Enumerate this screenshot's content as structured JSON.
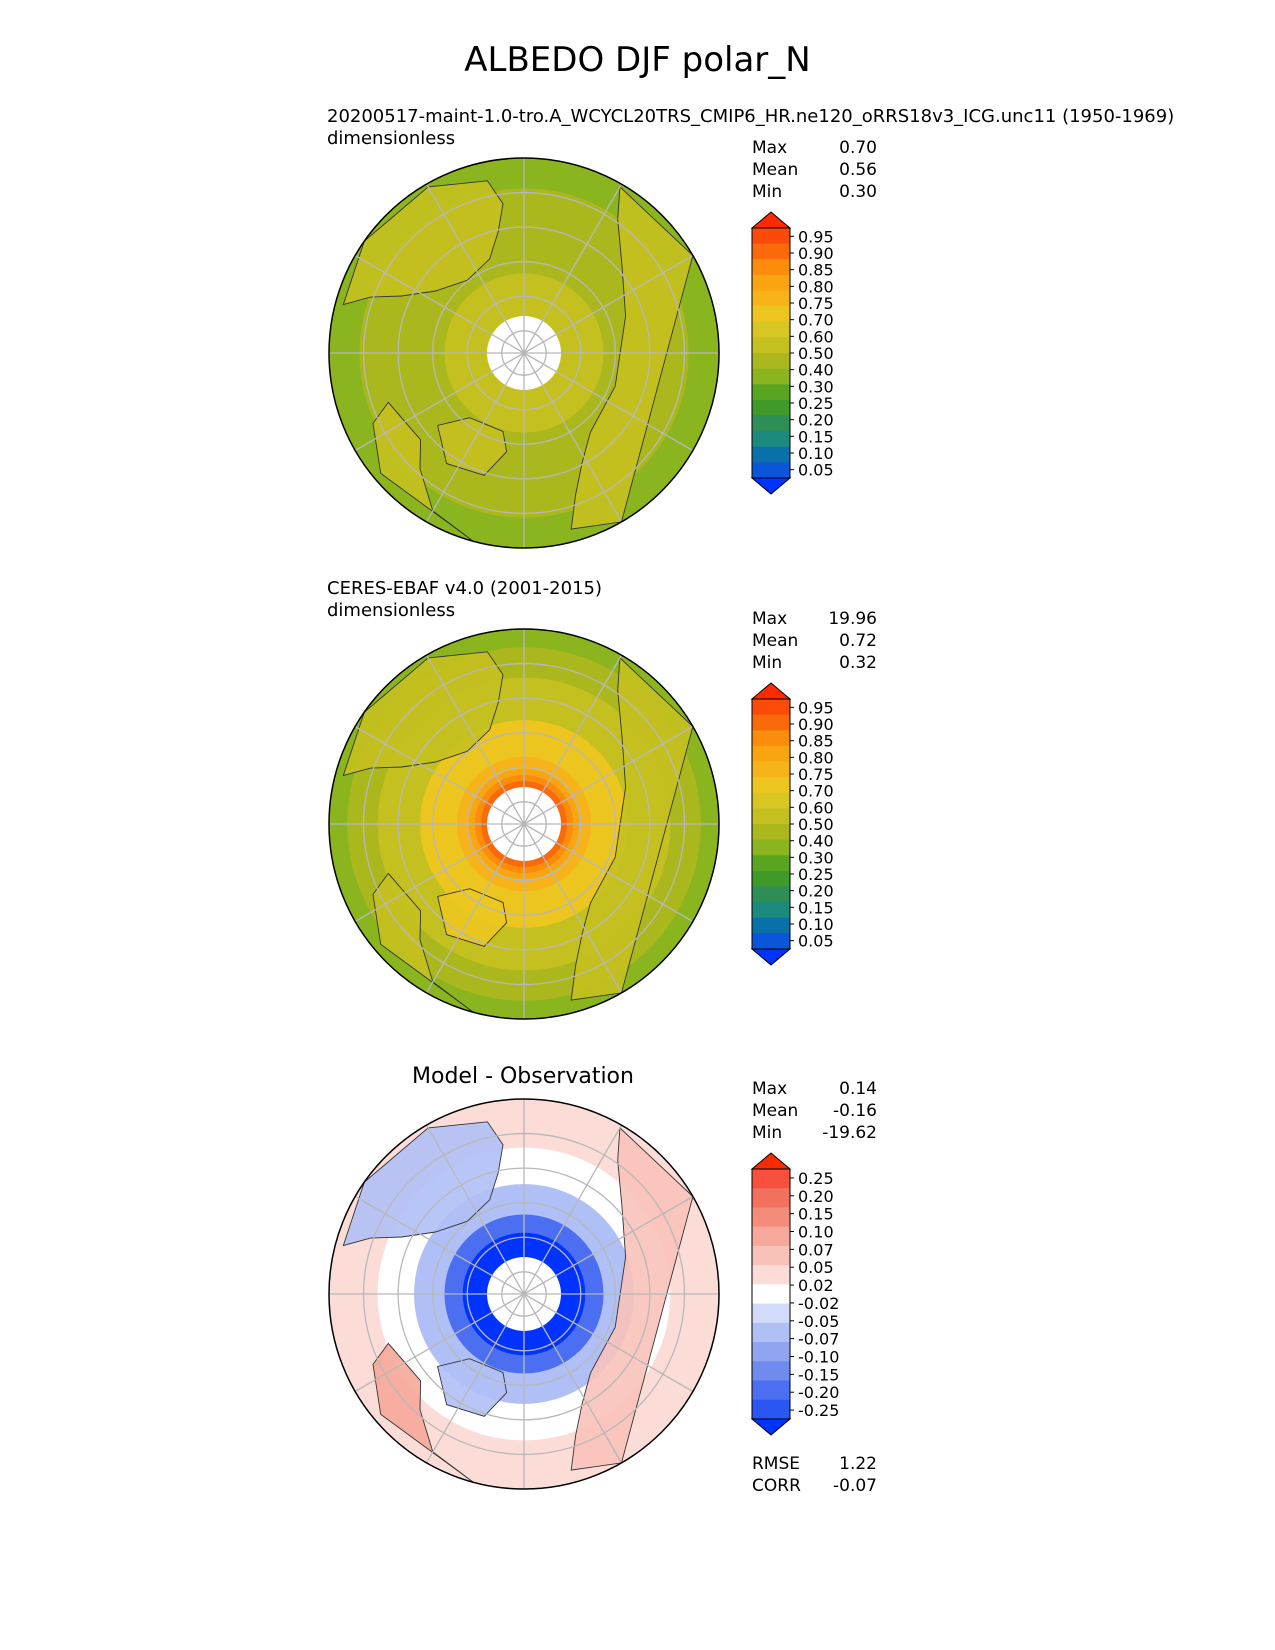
{
  "figure": {
    "title": "ALBEDO DJF polar_N"
  },
  "panels": [
    {
      "id": "model",
      "title_line1": "20200517-maint-1.0-tro.A_WCYCL20TRS_CMIP6_HR.ne120_oRRS18v3_ICG.unc11 (1950-1969)",
      "title_line2": "dimensionless",
      "stats": {
        "max_label": "Max",
        "max_value": "0.70",
        "mean_label": "Mean",
        "mean_value": "0.56",
        "min_label": "Min",
        "min_value": "0.30"
      },
      "colorbar_levels": [
        "0.95",
        "0.90",
        "0.85",
        "0.80",
        "0.75",
        "0.70",
        "0.60",
        "0.50",
        "0.40",
        "0.30",
        "0.25",
        "0.20",
        "0.15",
        "0.10",
        "0.05"
      ]
    },
    {
      "id": "obs",
      "title_line1": "CERES-EBAF v4.0 (2001-2015)",
      "title_line2": "dimensionless",
      "stats": {
        "max_label": "Max",
        "max_value": "19.96",
        "mean_label": "Mean",
        "mean_value": "0.72",
        "min_label": "Min",
        "min_value": "0.32"
      },
      "colorbar_levels": [
        "0.95",
        "0.90",
        "0.85",
        "0.80",
        "0.75",
        "0.70",
        "0.60",
        "0.50",
        "0.40",
        "0.30",
        "0.25",
        "0.20",
        "0.15",
        "0.10",
        "0.05"
      ]
    },
    {
      "id": "diff",
      "title": "Model - Observation",
      "stats": {
        "max_label": "Max",
        "max_value": "0.14",
        "mean_label": "Mean",
        "mean_value": "-0.16",
        "min_label": "Min",
        "min_value": "-19.62"
      },
      "metrics": {
        "rmse_label": "RMSE",
        "rmse_value": "1.22",
        "corr_label": "CORR",
        "corr_value": "-0.07"
      },
      "colorbar_levels": [
        "0.25",
        "0.20",
        "0.15",
        "0.10",
        "0.07",
        "0.05",
        "0.02",
        "-0.02",
        "-0.05",
        "-0.07",
        "-0.10",
        "-0.15",
        "-0.20",
        "-0.25"
      ]
    }
  ],
  "colors": {
    "albedo_scale": [
      "#0033ff",
      "#0a55d8",
      "#0a70a8",
      "#1d8a7e",
      "#2e8e55",
      "#3f9a2a",
      "#5aa520",
      "#8ab51e",
      "#aab81e",
      "#c4c01f",
      "#d8c622",
      "#ecc61f",
      "#f7b41a",
      "#f9a512",
      "#fb8c0c",
      "#fb6a0a",
      "#fa4c08",
      "#fb2a00"
    ],
    "diff_scale": [
      "#0033ff",
      "#2a56f4",
      "#4b6ff0",
      "#6f8bef",
      "#8fa5f2",
      "#b0c0f6",
      "#d2dcfa",
      "#ffffff",
      "#fbdcd7",
      "#f8c2b9",
      "#f6a89a",
      "#f48c7c",
      "#f4705e",
      "#f7503c",
      "#fb2a00"
    ],
    "land_outline": "#333333",
    "graticule": "#b8b8b8",
    "pole_mask": "#ffffff"
  },
  "chart_data": [
    {
      "type": "heatmap",
      "projection": "north-polar-stereographic",
      "title": "20200517-maint-1.0-tro.A_WCYCL20TRS_CMIP6_HR.ne120_oRRS18v3_ICG.unc11 (1950-1969)",
      "units": "dimensionless",
      "variable": "ALBEDO",
      "season": "DJF",
      "stats": {
        "max": 0.7,
        "mean": 0.56,
        "min": 0.3
      },
      "colorbar": {
        "levels": [
          0.05,
          0.1,
          0.15,
          0.2,
          0.25,
          0.3,
          0.4,
          0.5,
          0.6,
          0.7,
          0.75,
          0.8,
          0.85,
          0.9,
          0.95
        ],
        "extend": "both"
      },
      "field_summary": {
        "outer_ring_value": 0.45,
        "mid_ring_value": 0.57,
        "inner_ring_value": 0.66,
        "pole_masked": true
      }
    },
    {
      "type": "heatmap",
      "projection": "north-polar-stereographic",
      "title": "CERES-EBAF v4.0 (2001-2015)",
      "units": "dimensionless",
      "variable": "ALBEDO",
      "season": "DJF",
      "stats": {
        "max": 19.96,
        "mean": 0.72,
        "min": 0.32
      },
      "colorbar": {
        "levels": [
          0.05,
          0.1,
          0.15,
          0.2,
          0.25,
          0.3,
          0.4,
          0.5,
          0.6,
          0.7,
          0.75,
          0.8,
          0.85,
          0.9,
          0.95
        ],
        "extend": "both"
      },
      "field_summary": {
        "outer_ring_value": 0.47,
        "mid_ring_value": 0.62,
        "inner_ring_value": 0.78,
        "pole_edge_value": 0.97,
        "pole_masked": true
      }
    },
    {
      "type": "heatmap",
      "projection": "north-polar-stereographic",
      "title": "Model - Observation",
      "stats": {
        "max": 0.14,
        "mean": -0.16,
        "min": -19.62
      },
      "metrics": {
        "rmse": 1.22,
        "corr": -0.07
      },
      "colorbar": {
        "levels": [
          -0.25,
          -0.2,
          -0.15,
          -0.1,
          -0.07,
          -0.05,
          -0.02,
          0.02,
          0.05,
          0.07,
          0.1,
          0.15,
          0.2,
          0.25
        ],
        "extend": "both"
      },
      "field_summary": {
        "outer_ring_value": 0.03,
        "mid_ring_value": -0.06,
        "inner_ring_value": -0.18,
        "pole_edge_value": -0.3,
        "pole_masked": true
      }
    }
  ]
}
